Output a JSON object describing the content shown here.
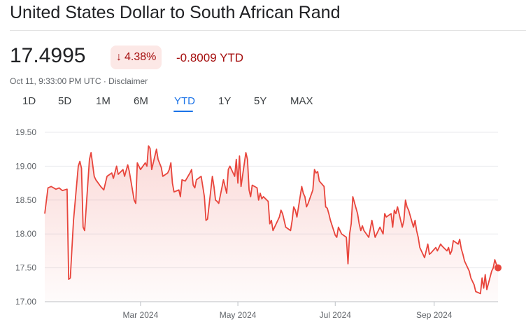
{
  "header": {
    "title": "United States Dollar to South African Rand"
  },
  "quote": {
    "price": "17.4995",
    "change_arrow": "↓",
    "change_percent": "4.38%",
    "ytd_change": "-0.8009 YTD",
    "timestamp": "Oct 11, 9:33:00 PM UTC · ",
    "disclaimer": "Disclaimer"
  },
  "range_tabs": [
    {
      "label": "1D",
      "active": false
    },
    {
      "label": "5D",
      "active": false
    },
    {
      "label": "1M",
      "active": false
    },
    {
      "label": "6M",
      "active": false
    },
    {
      "label": "YTD",
      "active": true
    },
    {
      "label": "1Y",
      "active": false
    },
    {
      "label": "5Y",
      "active": false
    },
    {
      "label": "MAX",
      "active": false
    }
  ],
  "colors": {
    "line": "#e8453c",
    "negative": "#a50e0e",
    "accent": "#1a73e8"
  },
  "chart_data": {
    "type": "area",
    "x_range": [
      "2024-01-01",
      "2024-10-11"
    ],
    "ylim": [
      17.0,
      19.5
    ],
    "yticks": [
      "19.50",
      "19.00",
      "18.50",
      "18.00",
      "17.50",
      "17.00"
    ],
    "ytick_values": [
      19.5,
      19.0,
      18.5,
      18.0,
      17.5,
      17.0
    ],
    "xticks": [
      {
        "label": "Mar 2024",
        "date": "2024-03-01"
      },
      {
        "label": "May 2024",
        "date": "2024-05-01"
      },
      {
        "label": "Jul 2024",
        "date": "2024-07-01"
      },
      {
        "label": "Sep 2024",
        "date": "2024-09-01"
      }
    ],
    "grid": true,
    "series": [
      {
        "values": [
          [
            "2024-01-01",
            18.3
          ],
          [
            "2024-01-03",
            18.68
          ],
          [
            "2024-01-05",
            18.7
          ],
          [
            "2024-01-08",
            18.66
          ],
          [
            "2024-01-10",
            18.68
          ],
          [
            "2024-01-12",
            18.64
          ],
          [
            "2024-01-15",
            18.66
          ],
          [
            "2024-01-16",
            17.33
          ],
          [
            "2024-01-17",
            17.35
          ],
          [
            "2024-01-19",
            18.2
          ],
          [
            "2024-01-22",
            19.0
          ],
          [
            "2024-01-23",
            19.07
          ],
          [
            "2024-01-24",
            18.97
          ],
          [
            "2024-01-25",
            18.1
          ],
          [
            "2024-01-26",
            18.05
          ],
          [
            "2024-01-29",
            19.1
          ],
          [
            "2024-01-30",
            19.2
          ],
          [
            "2024-02-01",
            18.85
          ],
          [
            "2024-02-02",
            18.8
          ],
          [
            "2024-02-05",
            18.7
          ],
          [
            "2024-02-07",
            18.65
          ],
          [
            "2024-02-09",
            18.85
          ],
          [
            "2024-02-12",
            18.9
          ],
          [
            "2024-02-13",
            18.82
          ],
          [
            "2024-02-15",
            19.0
          ],
          [
            "2024-02-16",
            18.88
          ],
          [
            "2024-02-19",
            18.95
          ],
          [
            "2024-02-20",
            18.85
          ],
          [
            "2024-02-22",
            19.02
          ],
          [
            "2024-02-23",
            18.92
          ],
          [
            "2024-02-26",
            18.5
          ],
          [
            "2024-02-27",
            18.45
          ],
          [
            "2024-02-28",
            19.05
          ],
          [
            "2024-03-01",
            18.95
          ],
          [
            "2024-03-04",
            19.05
          ],
          [
            "2024-03-05",
            19.0
          ],
          [
            "2024-03-06",
            19.3
          ],
          [
            "2024-03-07",
            19.26
          ],
          [
            "2024-03-08",
            18.95
          ],
          [
            "2024-03-11",
            19.25
          ],
          [
            "2024-03-12",
            19.1
          ],
          [
            "2024-03-14",
            18.98
          ],
          [
            "2024-03-15",
            18.85
          ],
          [
            "2024-03-18",
            18.9
          ],
          [
            "2024-03-19",
            18.95
          ],
          [
            "2024-03-20",
            19.05
          ],
          [
            "2024-03-21",
            18.75
          ],
          [
            "2024-03-22",
            18.62
          ],
          [
            "2024-03-25",
            18.65
          ],
          [
            "2024-03-26",
            18.55
          ],
          [
            "2024-03-27",
            18.8
          ],
          [
            "2024-03-29",
            18.78
          ],
          [
            "2024-04-01",
            18.9
          ],
          [
            "2024-04-02",
            18.95
          ],
          [
            "2024-04-03",
            18.72
          ],
          [
            "2024-04-04",
            18.68
          ],
          [
            "2024-04-05",
            18.8
          ],
          [
            "2024-04-08",
            18.85
          ],
          [
            "2024-04-09",
            18.7
          ],
          [
            "2024-04-10",
            18.55
          ],
          [
            "2024-04-11",
            18.2
          ],
          [
            "2024-04-12",
            18.22
          ],
          [
            "2024-04-15",
            18.85
          ],
          [
            "2024-04-16",
            18.7
          ],
          [
            "2024-04-17",
            18.5
          ],
          [
            "2024-04-18",
            18.48
          ],
          [
            "2024-04-19",
            18.45
          ],
          [
            "2024-04-22",
            18.8
          ],
          [
            "2024-04-23",
            18.7
          ],
          [
            "2024-04-24",
            18.6
          ],
          [
            "2024-04-25",
            18.95
          ],
          [
            "2024-04-26",
            19.0
          ],
          [
            "2024-04-29",
            18.85
          ],
          [
            "2024-04-30",
            19.1
          ],
          [
            "2024-05-01",
            18.75
          ],
          [
            "2024-05-02",
            19.15
          ],
          [
            "2024-05-03",
            18.7
          ],
          [
            "2024-05-06",
            19.2
          ],
          [
            "2024-05-07",
            19.1
          ],
          [
            "2024-05-08",
            18.65
          ],
          [
            "2024-05-09",
            18.55
          ],
          [
            "2024-05-10",
            18.72
          ],
          [
            "2024-05-13",
            18.68
          ],
          [
            "2024-05-14",
            18.5
          ],
          [
            "2024-05-15",
            18.6
          ],
          [
            "2024-05-16",
            18.52
          ],
          [
            "2024-05-17",
            18.55
          ],
          [
            "2024-05-20",
            18.48
          ],
          [
            "2024-05-21",
            18.15
          ],
          [
            "2024-05-22",
            18.2
          ],
          [
            "2024-05-23",
            18.05
          ],
          [
            "2024-05-24",
            18.1
          ],
          [
            "2024-05-27",
            18.25
          ],
          [
            "2024-05-28",
            18.35
          ],
          [
            "2024-05-29",
            18.3
          ],
          [
            "2024-05-31",
            18.1
          ],
          [
            "2024-06-03",
            18.05
          ],
          [
            "2024-06-04",
            18.2
          ],
          [
            "2024-06-05",
            18.4
          ],
          [
            "2024-06-06",
            18.35
          ],
          [
            "2024-06-07",
            18.25
          ],
          [
            "2024-06-10",
            18.7
          ],
          [
            "2024-06-11",
            18.6
          ],
          [
            "2024-06-12",
            18.55
          ],
          [
            "2024-06-13",
            18.4
          ],
          [
            "2024-06-14",
            18.45
          ],
          [
            "2024-06-17",
            18.65
          ],
          [
            "2024-06-18",
            18.95
          ],
          [
            "2024-06-19",
            18.9
          ],
          [
            "2024-06-20",
            18.92
          ],
          [
            "2024-06-21",
            18.78
          ],
          [
            "2024-06-24",
            18.7
          ],
          [
            "2024-06-25",
            18.4
          ],
          [
            "2024-06-26",
            18.38
          ],
          [
            "2024-06-27",
            18.3
          ],
          [
            "2024-06-28",
            18.2
          ],
          [
            "2024-07-01",
            17.98
          ],
          [
            "2024-07-02",
            17.95
          ],
          [
            "2024-07-03",
            18.1
          ],
          [
            "2024-07-05",
            18.0
          ],
          [
            "2024-07-08",
            17.95
          ],
          [
            "2024-07-09",
            17.56
          ],
          [
            "2024-07-10",
            18.0
          ],
          [
            "2024-07-11",
            18.15
          ],
          [
            "2024-07-12",
            18.55
          ],
          [
            "2024-07-15",
            18.3
          ],
          [
            "2024-07-16",
            18.15
          ],
          [
            "2024-07-17",
            18.05
          ],
          [
            "2024-07-18",
            18.12
          ],
          [
            "2024-07-19",
            18.05
          ],
          [
            "2024-07-22",
            17.95
          ],
          [
            "2024-07-24",
            18.2
          ],
          [
            "2024-07-26",
            17.95
          ],
          [
            "2024-07-29",
            18.1
          ],
          [
            "2024-07-31",
            18.0
          ],
          [
            "2024-08-01",
            18.3
          ],
          [
            "2024-08-02",
            18.25
          ],
          [
            "2024-08-05",
            18.3
          ],
          [
            "2024-08-06",
            18.1
          ],
          [
            "2024-08-07",
            18.35
          ],
          [
            "2024-08-08",
            18.3
          ],
          [
            "2024-08-09",
            18.4
          ],
          [
            "2024-08-12",
            18.1
          ],
          [
            "2024-08-13",
            18.2
          ],
          [
            "2024-08-14",
            18.5
          ],
          [
            "2024-08-15",
            18.4
          ],
          [
            "2024-08-16",
            18.35
          ],
          [
            "2024-08-19",
            18.1
          ],
          [
            "2024-08-20",
            18.2
          ],
          [
            "2024-08-21",
            18.05
          ],
          [
            "2024-08-22",
            17.95
          ],
          [
            "2024-08-23",
            17.8
          ],
          [
            "2024-08-26",
            17.65
          ],
          [
            "2024-08-27",
            17.75
          ],
          [
            "2024-08-28",
            17.85
          ],
          [
            "2024-08-29",
            17.7
          ],
          [
            "2024-08-30",
            17.72
          ],
          [
            "2024-09-02",
            17.8
          ],
          [
            "2024-09-03",
            17.75
          ],
          [
            "2024-09-05",
            17.85
          ],
          [
            "2024-09-06",
            17.82
          ],
          [
            "2024-09-09",
            17.75
          ],
          [
            "2024-09-10",
            17.8
          ],
          [
            "2024-09-11",
            17.7
          ],
          [
            "2024-09-12",
            17.75
          ],
          [
            "2024-09-13",
            17.9
          ],
          [
            "2024-09-16",
            17.85
          ],
          [
            "2024-09-17",
            17.92
          ],
          [
            "2024-09-18",
            17.78
          ],
          [
            "2024-09-19",
            17.7
          ],
          [
            "2024-09-20",
            17.6
          ],
          [
            "2024-09-23",
            17.45
          ],
          [
            "2024-09-24",
            17.35
          ],
          [
            "2024-09-25",
            17.3
          ],
          [
            "2024-09-26",
            17.25
          ],
          [
            "2024-09-27",
            17.15
          ],
          [
            "2024-09-30",
            17.12
          ],
          [
            "2024-10-01",
            17.35
          ],
          [
            "2024-10-02",
            17.2
          ],
          [
            "2024-10-03",
            17.4
          ],
          [
            "2024-10-04",
            17.18
          ],
          [
            "2024-10-07",
            17.45
          ],
          [
            "2024-10-08",
            17.5
          ],
          [
            "2024-10-09",
            17.62
          ],
          [
            "2024-10-10",
            17.55
          ],
          [
            "2024-10-11",
            17.4995
          ]
        ]
      }
    ]
  }
}
